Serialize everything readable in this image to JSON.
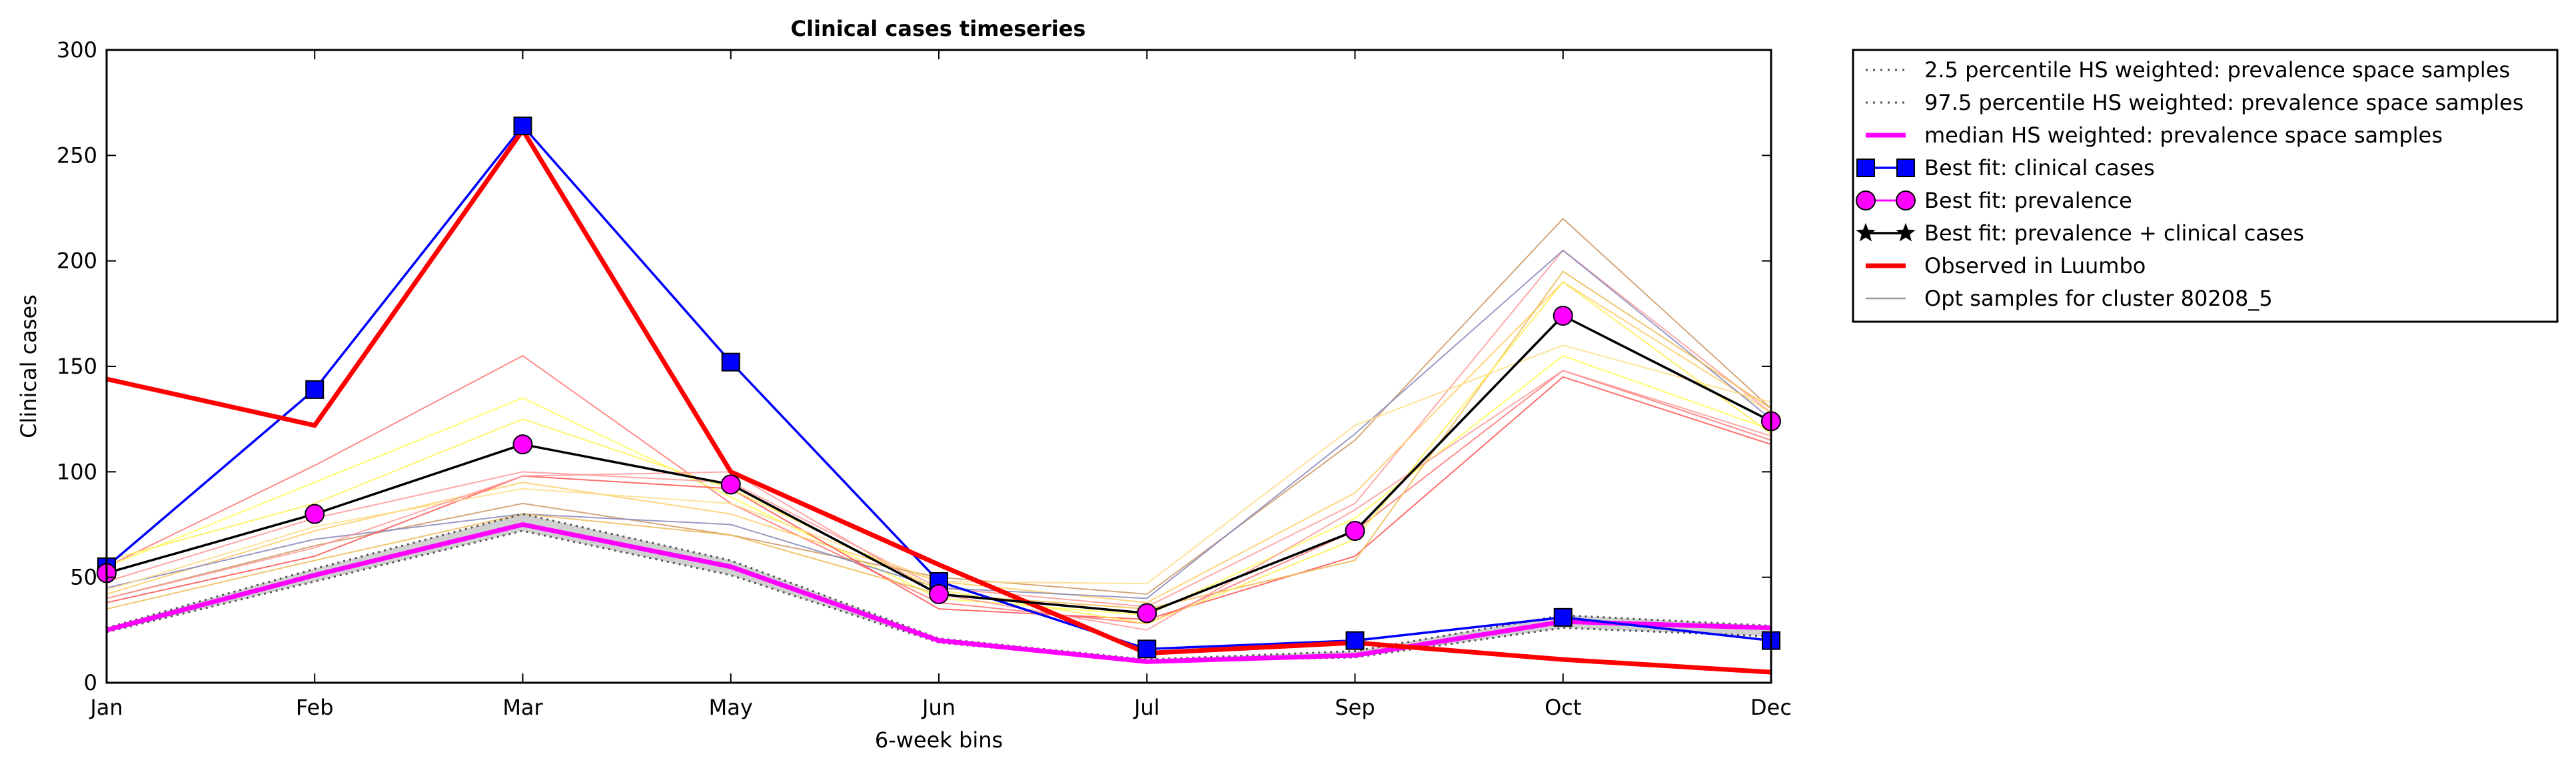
{
  "chart_data": {
    "type": "line",
    "title": "Clinical cases timeseries",
    "xlabel": "6-week bins",
    "ylabel": "Clinical cases",
    "categories": [
      "Jan",
      "Feb",
      "Mar",
      "May",
      "Jun",
      "Jul",
      "Sep",
      "Oct",
      "Dec"
    ],
    "ylim": [
      0,
      300
    ],
    "yticks": [
      0,
      50,
      100,
      150,
      200,
      250,
      300
    ],
    "grid": false,
    "legend_position": "outside-right",
    "series": [
      {
        "name": "2.5 percentile HS weighted: prevalence space samples",
        "style": "dotted",
        "color": "#555555",
        "values": [
          24,
          48,
          72,
          51,
          19,
          10,
          12,
          26,
          22
        ]
      },
      {
        "name": "97.5 percentile HS weighted: prevalence space samples",
        "style": "dotted",
        "color": "#555555",
        "values": [
          26,
          54,
          80,
          58,
          21,
          11,
          15,
          32,
          27
        ]
      },
      {
        "name": "median HS weighted: prevalence space samples",
        "style": "solid",
        "color": "#ff00ff",
        "values": [
          25,
          51,
          75,
          55,
          20,
          10,
          13,
          29,
          26
        ]
      },
      {
        "name": "Best fit: clinical cases",
        "style": "solid",
        "color": "#0000ff",
        "marker": "square",
        "values": [
          55,
          139,
          264,
          152,
          48,
          16,
          20,
          31,
          20
        ]
      },
      {
        "name": "Best fit: prevalence",
        "style": "none",
        "color": "#ff00ff",
        "marker": "circle",
        "values": [
          52,
          80,
          113,
          94,
          42,
          33,
          72,
          174,
          124
        ]
      },
      {
        "name": "Best fit: prevalence + clinical cases",
        "style": "solid",
        "color": "#000000",
        "marker": "star",
        "values": [
          52,
          80,
          113,
          94,
          42,
          33,
          72,
          174,
          124
        ]
      },
      {
        "name": "Observed in Luumbo",
        "style": "solid",
        "color": "#ff0000",
        "values": [
          144,
          122,
          262,
          100,
          56,
          14,
          19,
          11,
          5
        ]
      },
      {
        "name": "Opt samples for cluster 80208_5",
        "style": "solid",
        "color": "#999999",
        "values": [
          45,
          62,
          88,
          66,
          38,
          30,
          64,
          200,
          120
        ]
      }
    ],
    "opt_sample_lines": [
      {
        "color": "#ff7777",
        "values": [
          55,
          103,
          155,
          85,
          38,
          28,
          72,
          148,
          115
        ]
      },
      {
        "color": "#ffff55",
        "values": [
          55,
          95,
          135,
          88,
          40,
          32,
          78,
          155,
          120
        ]
      },
      {
        "color": "#ff9999",
        "values": [
          48,
          78,
          100,
          95,
          45,
          36,
          85,
          205,
          128
        ]
      },
      {
        "color": "#ffcc66",
        "values": [
          42,
          72,
          95,
          80,
          48,
          38,
          90,
          190,
          128
        ]
      },
      {
        "color": "#cc9966",
        "values": [
          40,
          65,
          85,
          70,
          50,
          42,
          115,
          220,
          130
        ]
      },
      {
        "color": "#8888bb",
        "values": [
          45,
          68,
          80,
          75,
          45,
          40,
          118,
          205,
          125
        ]
      },
      {
        "color": "#ff5555",
        "values": [
          38,
          60,
          98,
          92,
          35,
          30,
          60,
          145,
          113
        ]
      },
      {
        "color": "#ffdd88",
        "values": [
          44,
          74,
          92,
          85,
          48,
          47,
          122,
          160,
          133
        ]
      },
      {
        "color": "#eebb55",
        "values": [
          35,
          58,
          80,
          70,
          42,
          35,
          58,
          195,
          130
        ]
      },
      {
        "color": "#ffee55",
        "values": [
          58,
          85,
          125,
          92,
          44,
          28,
          68,
          190,
          118
        ]
      },
      {
        "color": "#ff9999",
        "values": [
          40,
          64,
          98,
          100,
          42,
          25,
          82,
          148,
          117
        ]
      }
    ]
  }
}
